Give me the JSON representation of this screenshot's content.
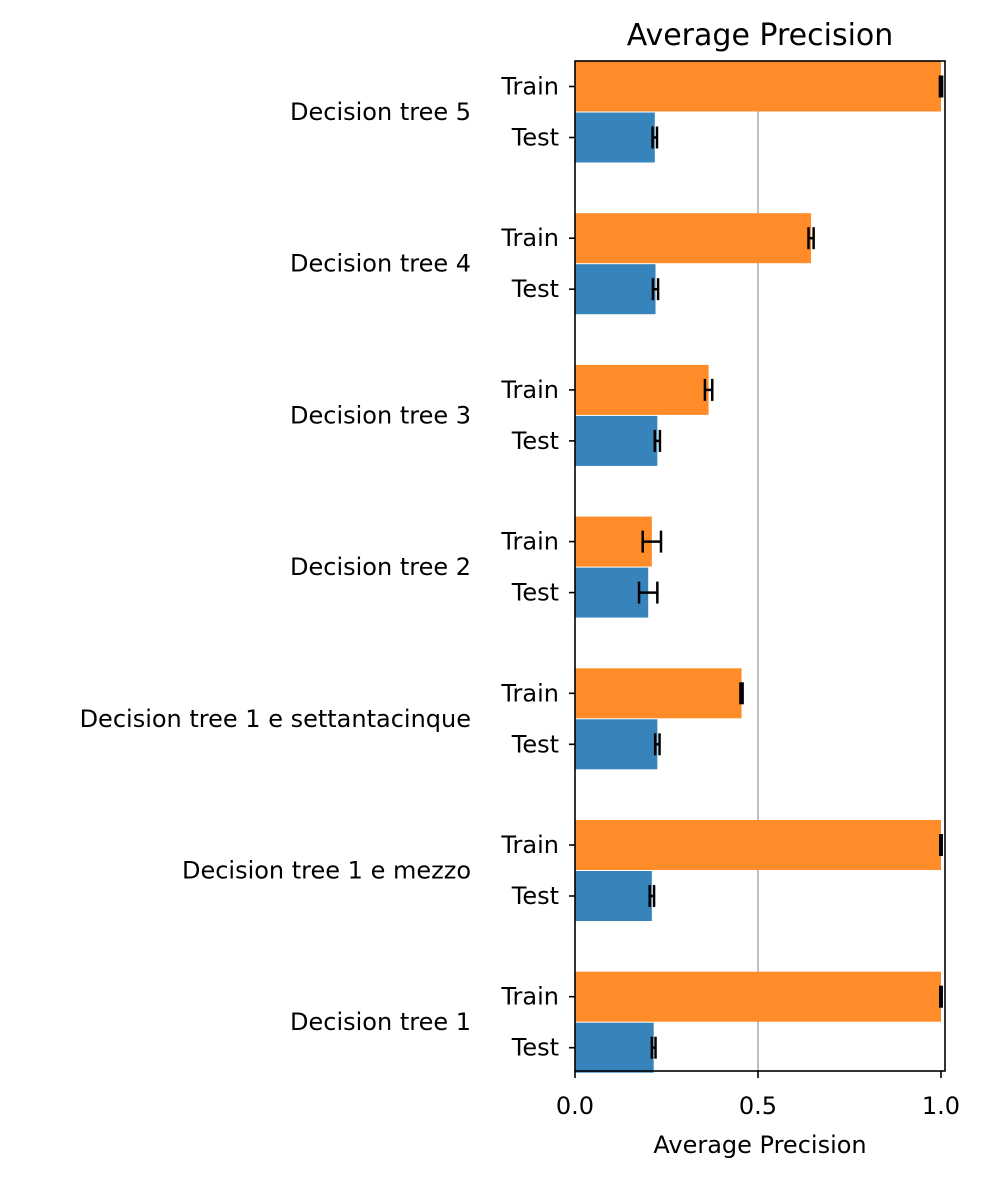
{
  "chart_data": {
    "type": "bar",
    "orientation": "horizontal",
    "title": "Average Precision",
    "xlabel": "Average Precision",
    "xlim": [
      0,
      1.0
    ],
    "xticks": [
      "0.0",
      "0.5",
      "1.0"
    ],
    "vline_at": 0.5,
    "grid": false,
    "legend": "none",
    "categories": [
      "Decision tree 5",
      "Decision tree 4",
      "Decision tree 3",
      "Decision tree 2",
      "Decision tree 1 e settantacinque",
      "Decision tree 1 e mezzo",
      "Decision tree 1"
    ],
    "series": [
      {
        "label": "Train",
        "color": "#ff8c28",
        "values": [
          1.0,
          0.645,
          0.365,
          0.21,
          0.455,
          1.0,
          1.0
        ],
        "errors": [
          0.003,
          0.007,
          0.01,
          0.025,
          0.003,
          0.002,
          0.002
        ]
      },
      {
        "label": "Test",
        "color": "#3684bb",
        "values": [
          0.218,
          0.22,
          0.225,
          0.2,
          0.225,
          0.21,
          0.215
        ],
        "errors": [
          0.006,
          0.007,
          0.007,
          0.025,
          0.006,
          0.006,
          0.005
        ]
      }
    ]
  }
}
